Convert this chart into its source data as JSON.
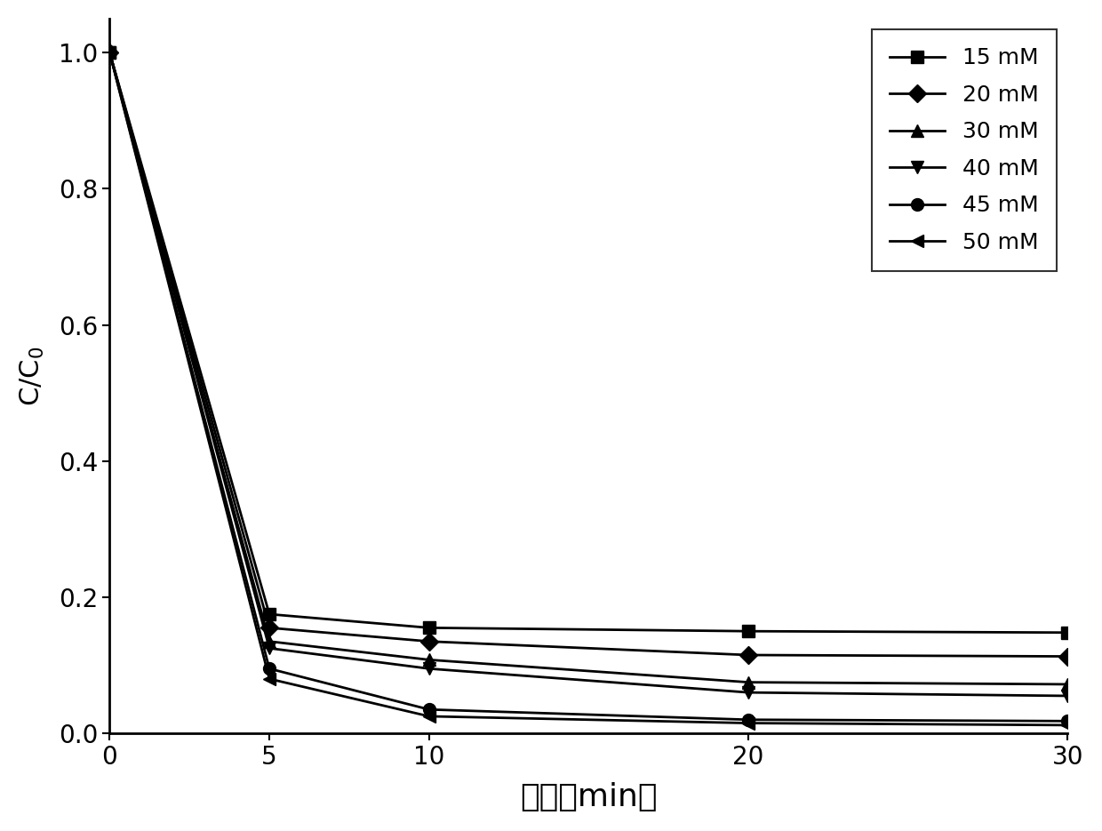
{
  "x": [
    0,
    5,
    10,
    20,
    30
  ],
  "series": [
    {
      "label": "15 mM",
      "marker": "s",
      "values": [
        1.0,
        0.175,
        0.155,
        0.15,
        0.148
      ]
    },
    {
      "label": "20 mM",
      "marker": "D",
      "values": [
        1.0,
        0.155,
        0.135,
        0.115,
        0.113
      ]
    },
    {
      "label": "30 mM",
      "marker": "^",
      "values": [
        1.0,
        0.135,
        0.108,
        0.075,
        0.072
      ]
    },
    {
      "label": "40 mM",
      "marker": "v",
      "values": [
        1.0,
        0.125,
        0.095,
        0.06,
        0.055
      ]
    },
    {
      "label": "45 mM",
      "marker": "o",
      "values": [
        1.0,
        0.095,
        0.035,
        0.02,
        0.018
      ]
    },
    {
      "label": "50 mM",
      "marker": "<",
      "values": [
        1.0,
        0.08,
        0.025,
        0.015,
        0.012
      ]
    }
  ],
  "xlabel": "时间（min）",
  "ylabel": "C/C$_0$",
  "xlim": [
    0,
    30
  ],
  "ylim": [
    0.0,
    1.05
  ],
  "xticks": [
    0,
    5,
    10,
    20,
    30
  ],
  "yticks": [
    0.0,
    0.2,
    0.4,
    0.6,
    0.8,
    1.0
  ],
  "line_color": "#000000",
  "markersize": 10,
  "linewidth": 2.0,
  "legend_loc": "upper right",
  "legend_fontsize": 18,
  "tick_fontsize": 20,
  "ylabel_fontsize": 22,
  "xlabel_fontsize": 26
}
